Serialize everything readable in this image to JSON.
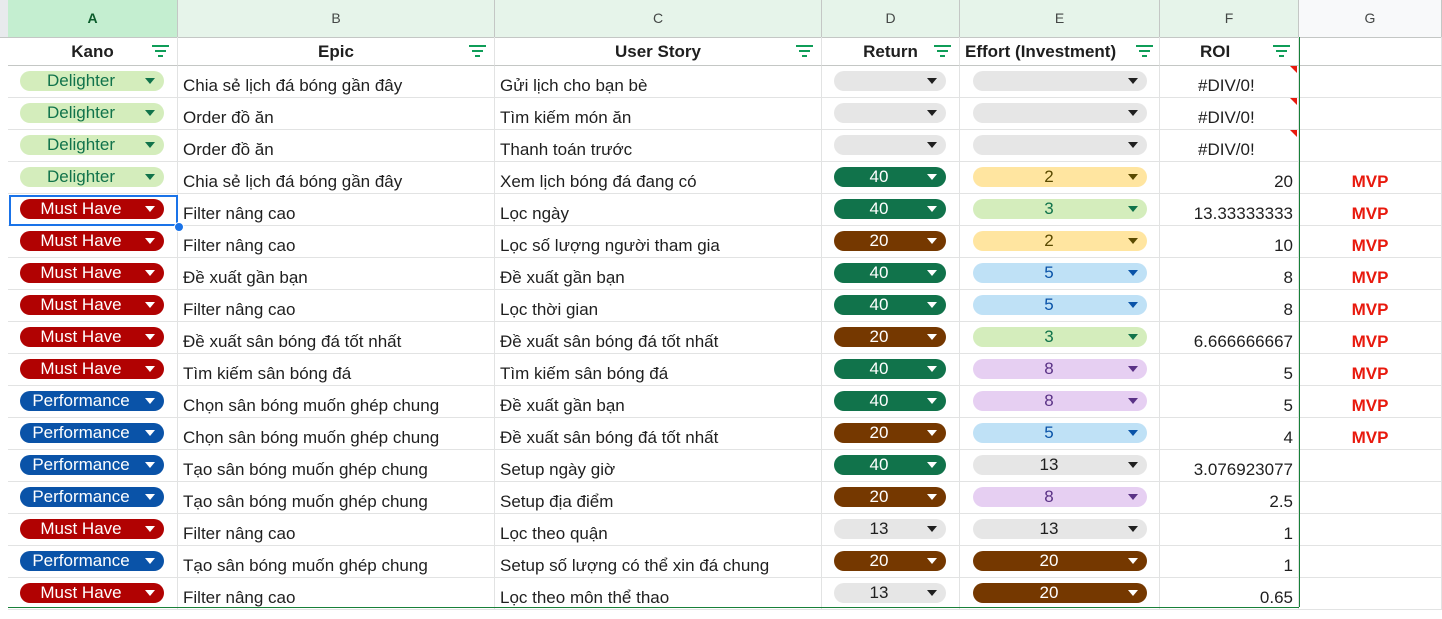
{
  "column_letters": [
    "A",
    "B",
    "C",
    "D",
    "E",
    "F",
    "G"
  ],
  "headers": {
    "kano": "Kano",
    "epic": "Epic",
    "user_story": "User Story",
    "return": "Return",
    "effort": "Effort (Investment)",
    "roi": "ROI"
  },
  "colors": {
    "delighter_bg": "#d4edbc",
    "delighter_fg": "#11734b",
    "musthave_bg": "#b10202",
    "musthave_fg": "#ffffff",
    "performance_bg": "#0a53a8",
    "performance_fg": "#ffffff",
    "green_dark": "#11734b",
    "brown": "#753800",
    "gray": "#e6e6e6",
    "yellow": "#ffe5a0",
    "lightgreen": "#d4edbc",
    "lightblue": "#bfe1f6",
    "lavender": "#e6cff2",
    "mvp": "#e8190d",
    "selection": "#1a73e8"
  },
  "rows": [
    {
      "kano": "Delighter",
      "epic": "Chia sẻ lịch đá bóng gần đây",
      "story": "Gửi lịch cho bạn bè",
      "return": "",
      "return_style": "gray",
      "effort": "",
      "effort_style": "gray",
      "roi": "#DIV/0!",
      "roi_error": true,
      "tag": ""
    },
    {
      "kano": "Delighter",
      "epic": "Order đồ ăn",
      "story": "Tìm kiếm món ăn",
      "return": "",
      "return_style": "gray",
      "effort": "",
      "effort_style": "gray",
      "roi": "#DIV/0!",
      "roi_error": true,
      "tag": ""
    },
    {
      "kano": "Delighter",
      "epic": "Order đồ ăn",
      "story": "Thanh toán trước",
      "return": "",
      "return_style": "gray",
      "effort": "",
      "effort_style": "gray",
      "roi": "#DIV/0!",
      "roi_error": true,
      "tag": ""
    },
    {
      "kano": "Delighter",
      "epic": "Chia sẻ lịch đá bóng gần đây",
      "story": "Xem lịch bóng đá đang có",
      "return": "40",
      "return_style": "green_dark",
      "effort": "2",
      "effort_style": "yellow",
      "roi": "20",
      "roi_error": false,
      "tag": "MVP"
    },
    {
      "kano": "Must Have",
      "epic": "Filter nâng cao",
      "story": "Lọc ngày",
      "return": "40",
      "return_style": "green_dark",
      "effort": "3",
      "effort_style": "lightgreen",
      "roi": "13.33333333",
      "roi_error": false,
      "tag": "MVP"
    },
    {
      "kano": "Must Have",
      "epic": "Filter nâng cao",
      "story": "Lọc số lượng người tham gia",
      "return": "20",
      "return_style": "brown",
      "effort": "2",
      "effort_style": "yellow",
      "roi": "10",
      "roi_error": false,
      "tag": "MVP"
    },
    {
      "kano": "Must Have",
      "epic": "Đề xuất gần bạn",
      "story": "Đề xuất gần bạn",
      "return": "40",
      "return_style": "green_dark",
      "effort": "5",
      "effort_style": "lightblue",
      "roi": "8",
      "roi_error": false,
      "tag": "MVP"
    },
    {
      "kano": "Must Have",
      "epic": "Filter nâng cao",
      "story": "Lọc thời gian",
      "return": "40",
      "return_style": "green_dark",
      "effort": "5",
      "effort_style": "lightblue",
      "roi": "8",
      "roi_error": false,
      "tag": "MVP"
    },
    {
      "kano": "Must Have",
      "epic": "Đề xuất sân bóng đá tốt nhất",
      "story": "Đề xuất sân bóng đá tốt nhất",
      "return": "20",
      "return_style": "brown",
      "effort": "3",
      "effort_style": "lightgreen",
      "roi": "6.666666667",
      "roi_error": false,
      "tag": "MVP"
    },
    {
      "kano": "Must Have",
      "epic": "Tìm kiếm sân bóng đá",
      "story": "Tìm kiếm sân bóng đá",
      "return": "40",
      "return_style": "green_dark",
      "effort": "8",
      "effort_style": "lavender",
      "roi": "5",
      "roi_error": false,
      "tag": "MVP"
    },
    {
      "kano": "Performance",
      "epic": "Chọn sân bóng muốn ghép chung",
      "story": "Đề xuất gần bạn",
      "return": "40",
      "return_style": "green_dark",
      "effort": "8",
      "effort_style": "lavender",
      "roi": "5",
      "roi_error": false,
      "tag": "MVP"
    },
    {
      "kano": "Performance",
      "epic": "Chọn sân bóng muốn ghép chung",
      "story": "Đề xuất sân bóng đá tốt nhất",
      "return": "20",
      "return_style": "brown",
      "effort": "5",
      "effort_style": "lightblue",
      "roi": "4",
      "roi_error": false,
      "tag": "MVP"
    },
    {
      "kano": "Performance",
      "epic": "Tạo sân bóng muốn ghép chung",
      "story": "Setup ngày giờ",
      "return": "40",
      "return_style": "green_dark",
      "effort": "13",
      "effort_style": "gray",
      "roi": "3.076923077",
      "roi_error": false,
      "tag": ""
    },
    {
      "kano": "Performance",
      "epic": "Tạo sân bóng muốn ghép chung",
      "story": "Setup địa điểm",
      "return": "20",
      "return_style": "brown",
      "effort": "8",
      "effort_style": "lavender",
      "roi": "2.5",
      "roi_error": false,
      "tag": ""
    },
    {
      "kano": "Must Have",
      "epic": "Filter nâng cao",
      "story": "Lọc theo quận",
      "return": "13",
      "return_style": "gray",
      "effort": "13",
      "effort_style": "gray",
      "roi": "1",
      "roi_error": false,
      "tag": ""
    },
    {
      "kano": "Performance",
      "epic": "Tạo sân bóng muốn ghép chung",
      "story": "Setup số lượng có thể xin đá chung",
      "return": "20",
      "return_style": "brown",
      "effort": "20",
      "effort_style": "brown",
      "roi": "1",
      "roi_error": false,
      "tag": ""
    },
    {
      "kano": "Must Have",
      "epic": "Filter nâng cao",
      "story": "Lọc theo môn thể thao",
      "return": "13",
      "return_style": "gray",
      "effort": "20",
      "effort_style": "brown",
      "roi": "0.65",
      "roi_error": false,
      "tag": ""
    }
  ]
}
